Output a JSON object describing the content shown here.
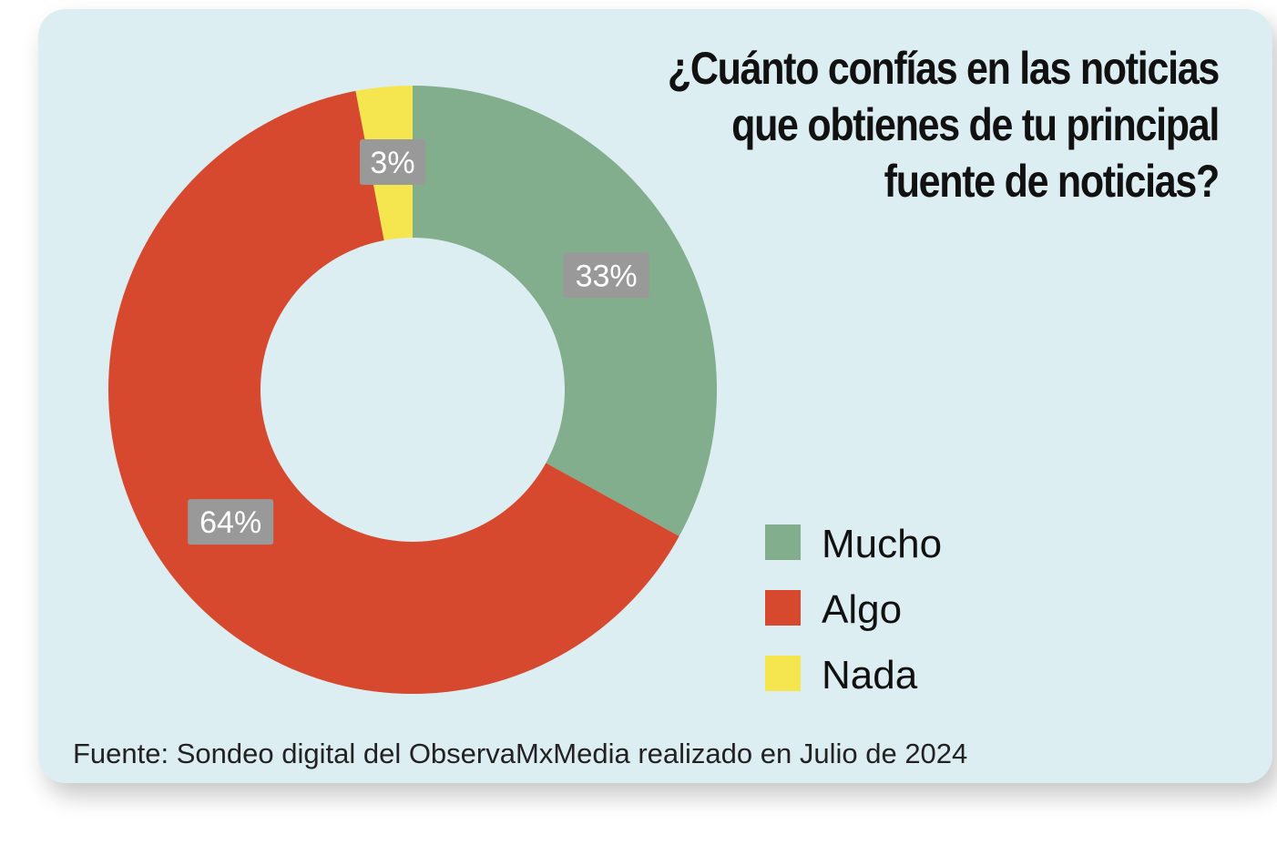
{
  "title_lines": [
    "¿Cuánto confías en las noticias",
    "que obtienes de tu principal",
    "fuente de noticias?"
  ],
  "source_note": "Fuente: Sondeo digital del ObservaMxMedia realizado en Julio de 2024",
  "chart_data": {
    "type": "pie",
    "variant": "donut",
    "title": "¿Cuánto confías en las noticias que obtienes de tu principal fuente de noticias?",
    "legend_position": "right-bottom",
    "slices": [
      {
        "label": "Mucho",
        "value": 33,
        "value_label": "33%",
        "color": "#82ae8d"
      },
      {
        "label": "Algo",
        "value": 64,
        "value_label": "64%",
        "color": "#d6492f"
      },
      {
        "label": "Nada",
        "value": 3,
        "value_label": "3%",
        "color": "#f5e54f"
      }
    ],
    "data_label_box_color": "#999999",
    "data_label_text_color": "#ffffff"
  }
}
